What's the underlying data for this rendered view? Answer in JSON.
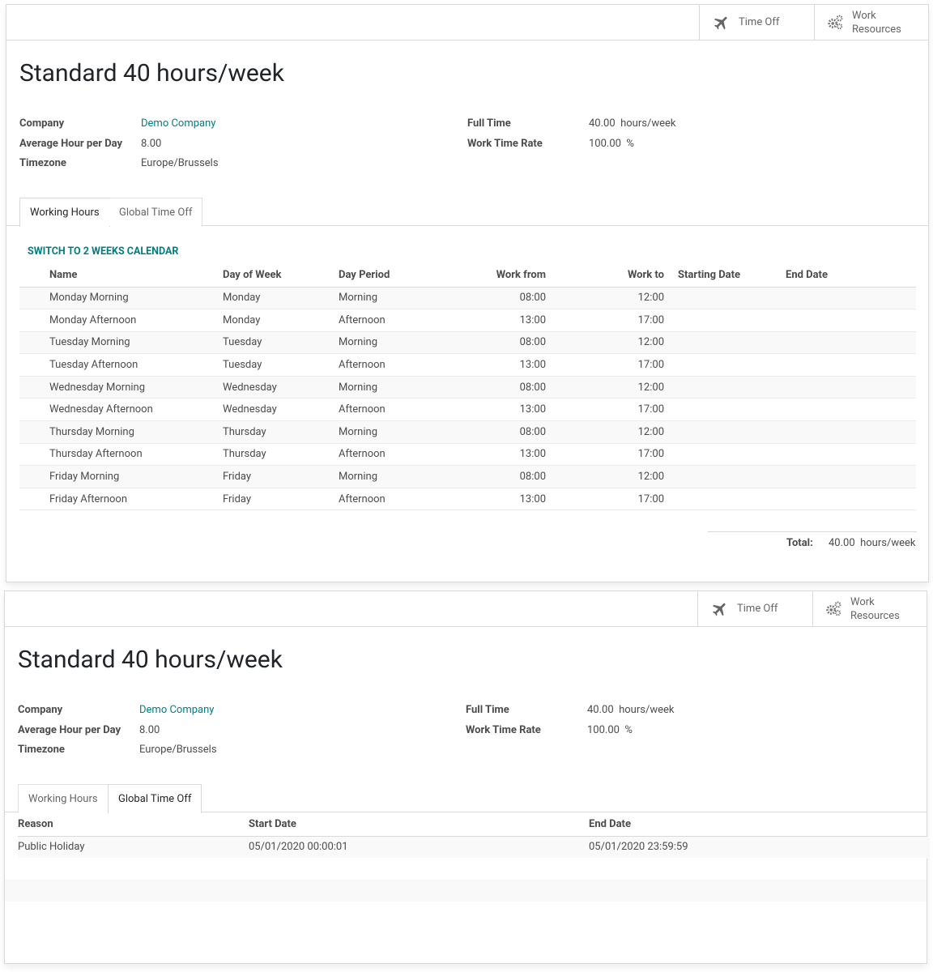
{
  "form1": {
    "buttons": {
      "time_off": "Time Off",
      "work_line1": "Work",
      "work_line2": "Resources"
    },
    "title": "Standard 40 hours/week",
    "fields": {
      "company_label": "Company",
      "company_value": "Demo Company",
      "avg_label": "Average Hour per Day",
      "avg_value": "8.00",
      "tz_label": "Timezone",
      "tz_value": "Europe/Brussels",
      "full_time_label": "Full Time",
      "full_time_value": "40.00",
      "full_time_unit": "hours/week",
      "rate_label": "Work Time Rate",
      "rate_value": "100.00",
      "rate_unit": "%"
    },
    "tabs": [
      "Working Hours",
      "Global Time Off"
    ],
    "switch_link": "SWITCH TO 2 WEEKS CALENDAR",
    "columns": [
      "Name",
      "Day of Week",
      "Day Period",
      "Work from",
      "Work to",
      "Starting Date",
      "End Date"
    ],
    "rows": [
      [
        "Monday Morning",
        "Monday",
        "Morning",
        "08:00",
        "12:00"
      ],
      [
        "Monday Afternoon",
        "Monday",
        "Afternoon",
        "13:00",
        "17:00"
      ],
      [
        "Tuesday Morning",
        "Tuesday",
        "Morning",
        "08:00",
        "12:00"
      ],
      [
        "Tuesday Afternoon",
        "Tuesday",
        "Afternoon",
        "13:00",
        "17:00"
      ],
      [
        "Wednesday Morning",
        "Wednesday",
        "Morning",
        "08:00",
        "12:00"
      ],
      [
        "Wednesday Afternoon",
        "Wednesday",
        "Afternoon",
        "13:00",
        "17:00"
      ],
      [
        "Thursday Morning",
        "Thursday",
        "Morning",
        "08:00",
        "12:00"
      ],
      [
        "Thursday Afternoon",
        "Thursday",
        "Afternoon",
        "13:00",
        "17:00"
      ],
      [
        "Friday Morning",
        "Friday",
        "Morning",
        "08:00",
        "12:00"
      ],
      [
        "Friday Afternoon",
        "Friday",
        "Afternoon",
        "13:00",
        "17:00"
      ]
    ],
    "total_label": "Total:",
    "total_value": "40.00",
    "total_unit": "hours/week"
  },
  "form2": {
    "buttons": {
      "time_off": "Time Off",
      "work_line1": "Work",
      "work_line2": "Resources"
    },
    "title": "Standard 40 hours/week",
    "fields": {
      "company_label": "Company",
      "company_value": "Demo Company",
      "avg_label": "Average Hour per Day",
      "avg_value": "8.00",
      "tz_label": "Timezone",
      "tz_value": "Europe/Brussels",
      "full_time_label": "Full Time",
      "full_time_value": "40.00",
      "full_time_unit": "hours/week",
      "rate_label": "Work Time Rate",
      "rate_value": "100.00",
      "rate_unit": "%"
    },
    "tabs": [
      "Working Hours",
      "Global Time Off"
    ],
    "columns": [
      "Reason",
      "Start Date",
      "End Date"
    ],
    "rows": [
      [
        "Public Holiday",
        "05/01/2020 00:00:01",
        "05/01/2020 23:59:59"
      ]
    ]
  },
  "colors": {
    "link": "#017e84",
    "border": "#d9d9d9",
    "text": "#4c4c4c"
  }
}
